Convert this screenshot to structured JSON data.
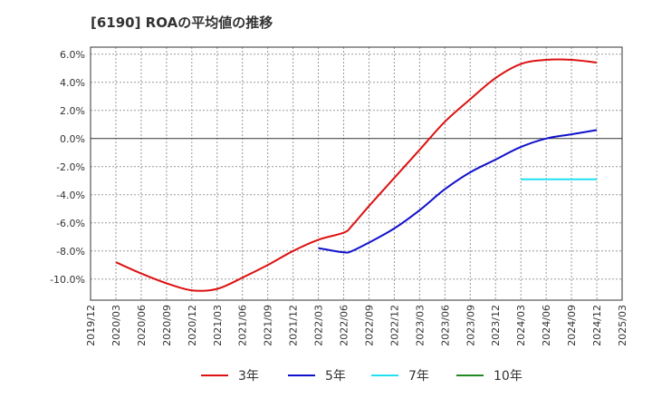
{
  "chart_data": {
    "type": "line",
    "title": "[6190]  ROAの平均値の推移",
    "xlabel": "",
    "ylabel": "",
    "ylim": [
      -11.5,
      6.5
    ],
    "y_ticks": [
      6.0,
      4.0,
      2.0,
      0.0,
      -2.0,
      -4.0,
      -6.0,
      -8.0,
      -10.0
    ],
    "y_tick_labels": [
      "6.0%",
      "4.0%",
      "2.0%",
      "0.0%",
      "-2.0%",
      "-4.0%",
      "-6.0%",
      "-8.0%",
      "-10.0%"
    ],
    "x_tick_labels": [
      "2019/12",
      "2020/03",
      "2020/06",
      "2020/09",
      "2020/12",
      "2021/03",
      "2021/06",
      "2021/09",
      "2021/12",
      "2022/03",
      "2022/06",
      "2022/09",
      "2022/12",
      "2023/03",
      "2023/06",
      "2023/09",
      "2023/12",
      "2024/03",
      "2024/06",
      "2024/09",
      "2024/12",
      "2025/03"
    ],
    "grid": true,
    "legend_position": "bottom",
    "series": [
      {
        "name": "3年",
        "color": "#dd1111",
        "x": [
          "2020/03",
          "2020/06",
          "2020/09",
          "2020/12",
          "2021/03",
          "2021/06",
          "2021/09",
          "2021/12",
          "2022/03",
          "2022/06",
          "2022/07",
          "2022/09",
          "2022/12",
          "2023/03",
          "2023/06",
          "2023/09",
          "2023/12",
          "2024/03",
          "2024/06",
          "2024/09",
          "2024/12"
        ],
        "values": [
          -8.8,
          -9.6,
          -10.3,
          -10.8,
          -10.7,
          -9.9,
          -9.0,
          -8.0,
          -7.2,
          -6.7,
          -6.2,
          -4.8,
          -2.8,
          -0.8,
          1.2,
          2.8,
          4.3,
          5.3,
          5.6,
          5.6,
          5.4
        ]
      },
      {
        "name": "5年",
        "color": "#1111cc",
        "x": [
          "2022/03",
          "2022/06",
          "2022/07",
          "2022/09",
          "2022/12",
          "2023/03",
          "2023/06",
          "2023/09",
          "2023/12",
          "2024/03",
          "2024/06",
          "2024/09",
          "2024/12"
        ],
        "values": [
          -7.8,
          -8.1,
          -8.0,
          -7.4,
          -6.4,
          -5.1,
          -3.6,
          -2.4,
          -1.5,
          -0.6,
          0.0,
          0.3,
          0.6
        ]
      },
      {
        "name": "7年",
        "color": "#22e0f0",
        "x": [
          "2024/03",
          "2024/06",
          "2024/09",
          "2024/12"
        ],
        "values": [
          -2.9,
          -2.9,
          -2.9,
          -2.9
        ]
      },
      {
        "name": "10年",
        "color": "#228822",
        "x": [],
        "values": []
      }
    ]
  }
}
